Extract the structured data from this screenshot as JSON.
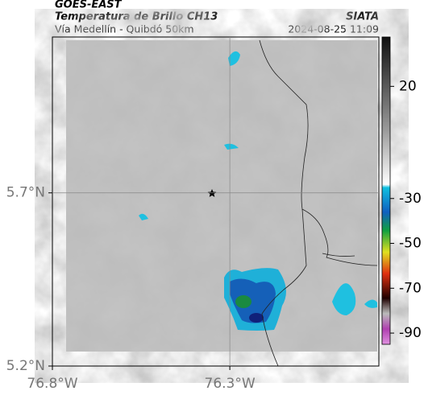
{
  "header": {
    "title": "GOES-EAST",
    "subtitle": "Temperatura de Brillo CH13",
    "source": "SIATA",
    "route": "Vía Medellín - Quibdó 50km",
    "timestamp": "2024-08-25 11:09"
  },
  "map": {
    "xlim": [
      -76.8,
      -75.88
    ],
    "ylim": [
      5.2,
      6.15
    ],
    "xticks": [
      {
        "value": -76.8,
        "label": "76.8°W"
      },
      {
        "value": -76.3,
        "label": "76.3°W"
      }
    ],
    "yticks": [
      {
        "value": 5.2,
        "label": "5.2°N"
      },
      {
        "value": 5.7,
        "label": "5.7°N"
      }
    ]
  },
  "colorbar": {
    "clim": [
      42,
      -95
    ],
    "ticks": [
      20,
      -30,
      -50,
      -70,
      -90
    ]
  }
}
